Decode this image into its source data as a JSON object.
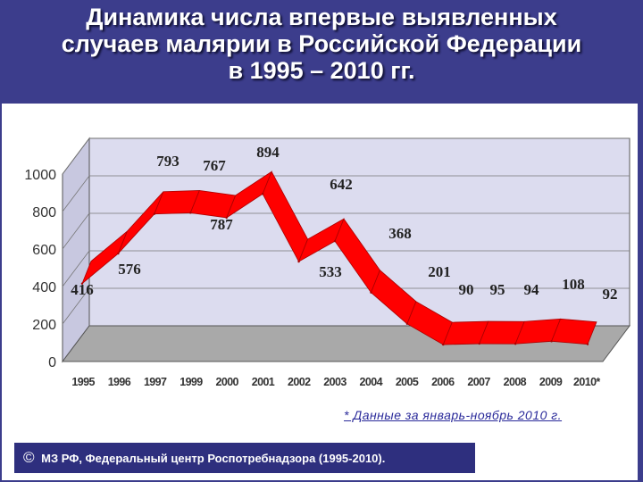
{
  "slide": {
    "title_lines": [
      "Динамика числа впервые выявленных",
      "случаев малярии в Российской Федерации",
      "в 1995 – 2010 гг."
    ],
    "note": "* Данные за январь-ноябрь 2010 г.",
    "source_symbol": "©",
    "source_text": "МЗ РФ, Федеральный центр Роспотребнадзора (1995-2010)."
  },
  "chart_data": {
    "type": "line",
    "style": "3d-ribbon",
    "categories": [
      "1995",
      "1996",
      "1997",
      "1999",
      "2000",
      "2001",
      "2002",
      "2003",
      "2004",
      "2005",
      "2006",
      "2007",
      "2008",
      "2009",
      "2010*"
    ],
    "values": [
      416,
      576,
      787,
      793,
      767,
      894,
      533,
      642,
      368,
      201,
      90,
      95,
      94,
      108,
      92
    ],
    "data_labels": [
      "416",
      "576",
      "787",
      "793",
      "767",
      "894",
      "533",
      "642",
      "368",
      "201",
      "90",
      "95",
      "94",
      "108",
      "92"
    ],
    "y_ticks": [
      "0",
      "200",
      "400",
      "600",
      "800",
      "1000"
    ],
    "ylim": [
      0,
      1000
    ],
    "title": "",
    "xlabel": "",
    "ylabel": "",
    "grid": true,
    "legend": "none",
    "colors": {
      "ribbon": "#ff0000",
      "ribbon_edge": "#aa0000",
      "wall": "#dcdcef",
      "floor": "#a9a9a9",
      "background": "#3c3d8c"
    }
  }
}
